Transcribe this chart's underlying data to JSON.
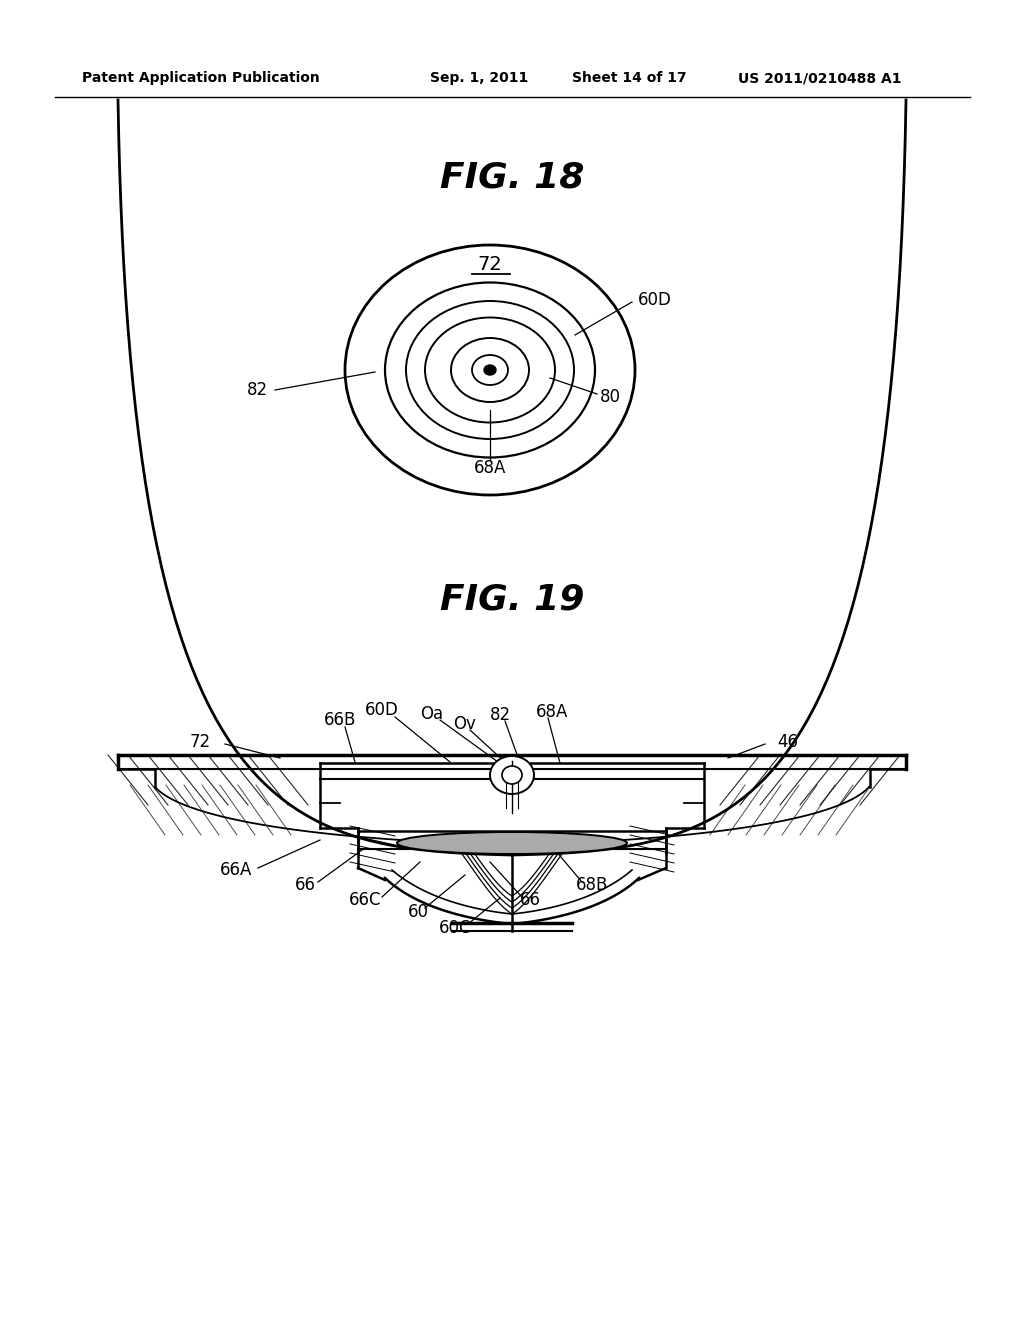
{
  "bg_color": "#ffffff",
  "header_text": "Patent Application Publication",
  "header_date": "Sep. 1, 2011",
  "header_sheet": "Sheet 14 of 17",
  "header_patent": "US 2011/0210488 A1",
  "fig18_title": "FIG. 18",
  "fig19_title": "FIG. 19"
}
